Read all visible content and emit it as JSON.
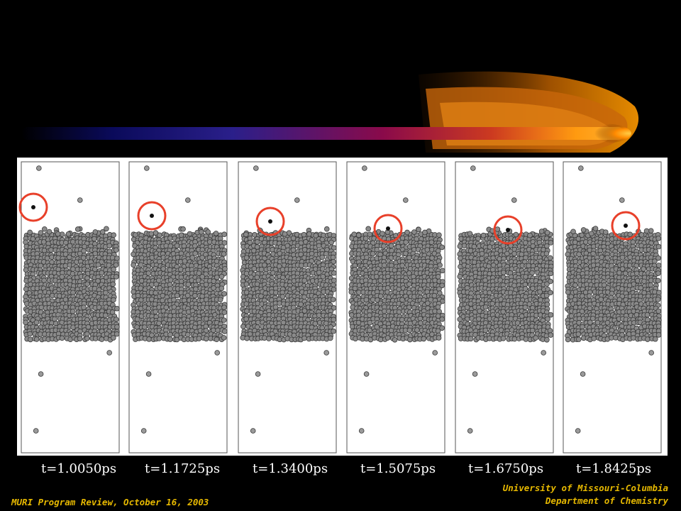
{
  "slide": {
    "background": "#000000",
    "accent_orange": "#ff8c00",
    "highlight_circle_color": "#e8402a",
    "time_labels": [
      "t=1.0050ps",
      "t=1.1725ps",
      "t=1.3400ps",
      "t=1.5075ps",
      "t=1.6750ps",
      "t=1.8425ps"
    ],
    "footer_left": "MURI Program Review, October 16, 2003",
    "footer_right_line1": "University of Missouri-Columbia",
    "footer_right_line2": "Department of Chemistry"
  }
}
